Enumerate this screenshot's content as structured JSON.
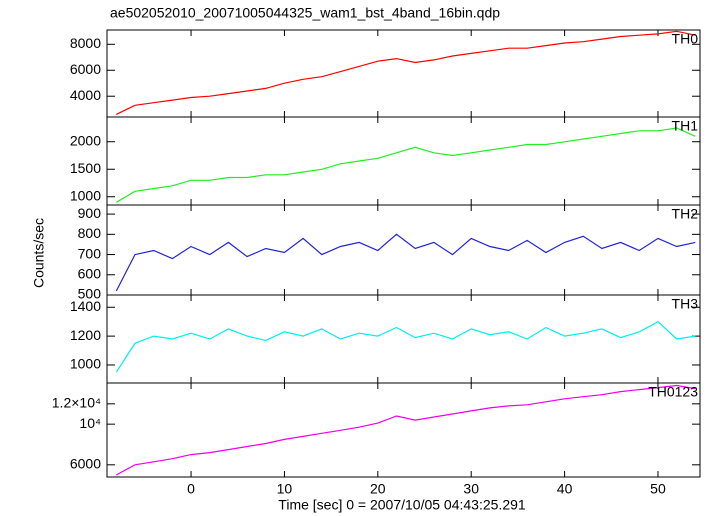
{
  "title": "ae502052010_20071005044325_wam1_bst_4band_16bin.qdp",
  "y_label": "Counts/sec",
  "x_axis": {
    "label": "Time [sec] 0 = 2007/10/05 04:43:25.291",
    "xlim": [
      -9,
      54.5
    ],
    "xticks": [
      0,
      10,
      20,
      30,
      40,
      50
    ]
  },
  "chart_data": [
    {
      "type": "line",
      "name": "TH0",
      "color": "#ff0000",
      "ylim": [
        2400,
        9100
      ],
      "yticks": [
        4000,
        6000,
        8000
      ],
      "x": [
        -8,
        -6,
        -4,
        -2,
        0,
        2,
        4,
        6,
        8,
        10,
        12,
        14,
        16,
        18,
        20,
        22,
        24,
        26,
        28,
        30,
        32,
        34,
        36,
        38,
        40,
        42,
        44,
        46,
        48,
        50,
        52,
        54
      ],
      "values": [
        2600,
        3300,
        3500,
        3700,
        3900,
        4000,
        4200,
        4400,
        4600,
        5000,
        5300,
        5500,
        5900,
        6300,
        6700,
        6900,
        6600,
        6800,
        7100,
        7300,
        7500,
        7700,
        7700,
        7900,
        8100,
        8200,
        8400,
        8600,
        8700,
        8800,
        9000,
        8700
      ]
    },
    {
      "type": "line",
      "name": "TH1",
      "color": "#22ee22",
      "ylim": [
        850,
        2450
      ],
      "yticks": [
        1000,
        1500,
        2000
      ],
      "x": [
        -8,
        -6,
        -4,
        -2,
        0,
        2,
        4,
        6,
        8,
        10,
        12,
        14,
        16,
        18,
        20,
        22,
        24,
        26,
        28,
        30,
        32,
        34,
        36,
        38,
        40,
        42,
        44,
        46,
        48,
        50,
        52,
        54
      ],
      "values": [
        900,
        1100,
        1150,
        1200,
        1300,
        1300,
        1350,
        1350,
        1400,
        1400,
        1450,
        1500,
        1600,
        1650,
        1700,
        1800,
        1900,
        1800,
        1750,
        1800,
        1850,
        1900,
        1950,
        1950,
        2000,
        2050,
        2100,
        2150,
        2200,
        2200,
        2250,
        2100
      ]
    },
    {
      "type": "line",
      "name": "TH2",
      "color": "#2222dd",
      "ylim": [
        500,
        945
      ],
      "yticks": [
        500,
        600,
        700,
        800,
        900
      ],
      "x": [
        -8,
        -6,
        -4,
        -2,
        0,
        2,
        4,
        6,
        8,
        10,
        12,
        14,
        16,
        18,
        20,
        22,
        24,
        26,
        28,
        30,
        32,
        34,
        36,
        38,
        40,
        42,
        44,
        46,
        48,
        50,
        52,
        54
      ],
      "values": [
        520,
        700,
        720,
        680,
        740,
        700,
        760,
        690,
        730,
        710,
        780,
        700,
        740,
        760,
        720,
        800,
        730,
        760,
        700,
        780,
        740,
        720,
        770,
        710,
        760,
        790,
        730,
        760,
        720,
        780,
        740,
        760
      ]
    },
    {
      "type": "line",
      "name": "TH3",
      "color": "#00eeee",
      "ylim": [
        875,
        1485
      ],
      "yticks": [
        1000,
        1200,
        1400
      ],
      "x": [
        -8,
        -6,
        -4,
        -2,
        0,
        2,
        4,
        6,
        8,
        10,
        12,
        14,
        16,
        18,
        20,
        22,
        24,
        26,
        28,
        30,
        32,
        34,
        36,
        38,
        40,
        42,
        44,
        46,
        48,
        50,
        52,
        54
      ],
      "values": [
        950,
        1150,
        1200,
        1180,
        1220,
        1180,
        1250,
        1200,
        1170,
        1230,
        1200,
        1250,
        1180,
        1220,
        1200,
        1260,
        1190,
        1220,
        1180,
        1250,
        1210,
        1230,
        1180,
        1260,
        1200,
        1220,
        1250,
        1190,
        1230,
        1300,
        1180,
        1200
      ]
    },
    {
      "type": "line",
      "name": "TH0123",
      "color": "#ee00ee",
      "ylim": [
        4800,
        14050
      ],
      "yticks": [
        6000,
        {
          "value": 10000,
          "label": "10⁴"
        },
        {
          "value": 12000,
          "label": "1.2×10⁴"
        }
      ],
      "x": [
        -8,
        -6,
        -4,
        -2,
        0,
        2,
        4,
        6,
        8,
        10,
        12,
        14,
        16,
        18,
        20,
        22,
        24,
        26,
        28,
        30,
        32,
        34,
        36,
        38,
        40,
        42,
        44,
        46,
        48,
        50,
        52,
        54
      ],
      "values": [
        5000,
        6000,
        6300,
        6600,
        7000,
        7200,
        7500,
        7800,
        8100,
        8500,
        8800,
        9100,
        9400,
        9700,
        10100,
        10800,
        10400,
        10700,
        11000,
        11300,
        11600,
        11800,
        11900,
        12200,
        12500,
        12700,
        12900,
        13200,
        13400,
        13600,
        13800,
        13500
      ]
    }
  ]
}
